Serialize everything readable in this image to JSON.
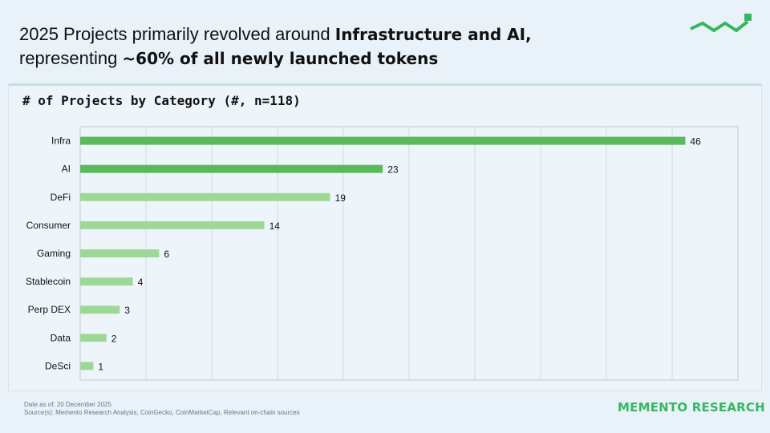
{
  "headline": {
    "line1_regular": "2025 Projects primarily revolved around ",
    "line1_bold": "Infrastructure and AI,",
    "line2_regular": "representing ",
    "line2_bold": "~60% of all newly launched tokens"
  },
  "colors": {
    "highlight_bar": "#5cb85c",
    "other_bar": "#9ed897",
    "brand": "#34b861",
    "logo_mark": "#34b861"
  },
  "chart_data": {
    "type": "bar",
    "orientation": "horizontal",
    "title": "# of Projects by Category (#, n=118)",
    "categories": [
      "Infra",
      "AI",
      "DeFi",
      "Consumer",
      "Gaming",
      "Stablecoin",
      "Perp DEX",
      "Data",
      "DeSci"
    ],
    "values": [
      46,
      23,
      19,
      14,
      6,
      4,
      3,
      2,
      1
    ],
    "highlighted": [
      "Infra",
      "AI"
    ],
    "xlim": [
      0,
      50
    ],
    "grid": true,
    "xlabel": "",
    "ylabel": ""
  },
  "footnote": {
    "date": "Date as of: 20 December 2025",
    "sources": "Source(s): Memento Research Analysis, CoinGecko, CoinMarketCap, Relevant on-chain sources"
  },
  "brand": "MEMENTO RESEARCH"
}
